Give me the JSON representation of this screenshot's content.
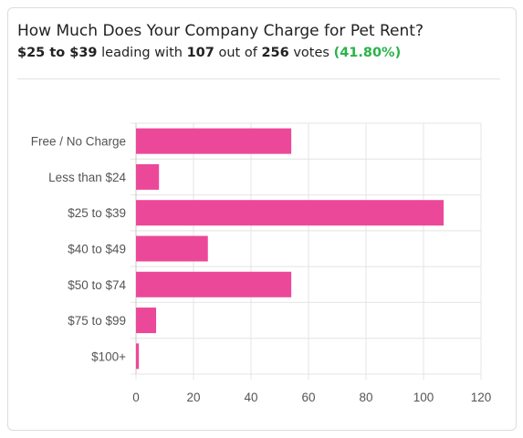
{
  "header": {
    "title": "How Much Does Your Company Charge for Pet Rent?",
    "leader": "$25 to $39",
    "leading_with": "leading with",
    "leader_votes": "107",
    "out_of": "out of",
    "total_votes": "256",
    "votes_word": "votes",
    "percent": "(41.80%)"
  },
  "colors": {
    "bar": "#ec4899",
    "grid": "#e4e4e4",
    "axis": "#c8c8c8",
    "percent": "#2ab34a"
  },
  "chart_data": {
    "type": "bar",
    "orientation": "horizontal",
    "title": "",
    "xlabel": "",
    "ylabel": "",
    "categories": [
      "Free / No Charge",
      "Less than $24",
      "$25 to $39",
      "$40 to $49",
      "$50 to $74",
      "$75 to $99",
      "$100+"
    ],
    "values": [
      54,
      8,
      107,
      25,
      54,
      7,
      1
    ],
    "xlim": [
      0,
      120
    ],
    "xticks": [
      0,
      20,
      40,
      60,
      80,
      100,
      120
    ],
    "grid": true,
    "legend": "none"
  }
}
